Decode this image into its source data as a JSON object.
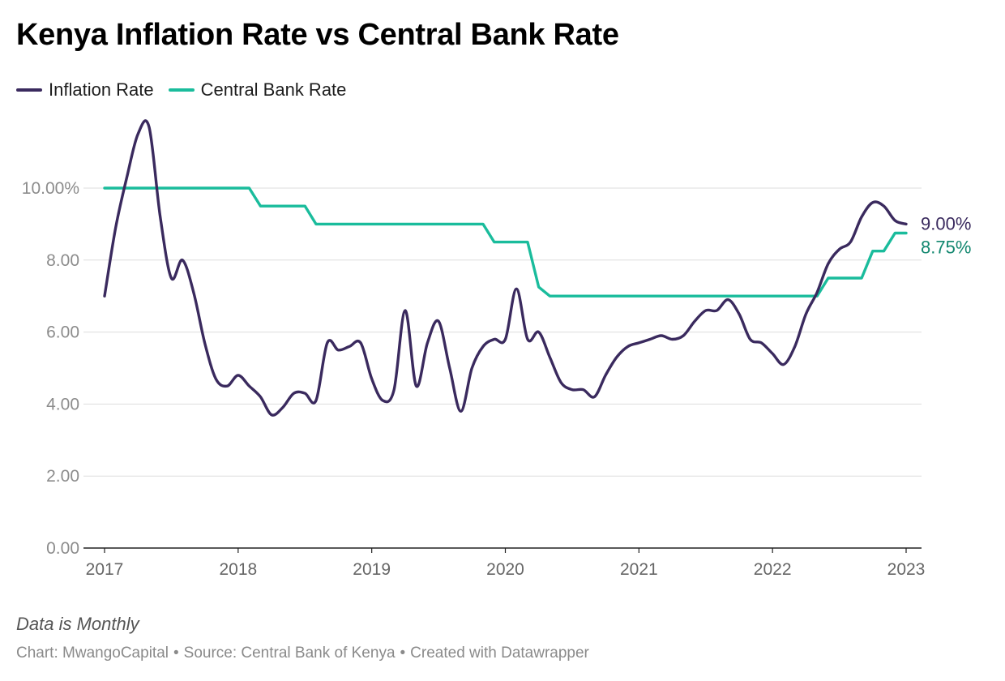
{
  "header": {
    "title": "Kenya Inflation Rate vs Central Bank Rate"
  },
  "note": "Data is Monthly",
  "footer": {
    "chart_credit": "Chart: MwangoCapital",
    "source": "Source: Central Bank of Kenya",
    "created_with": "Created with Datawrapper",
    "separator": "•"
  },
  "colors": {
    "inflation": "#3a2a5e",
    "cbr": "#1abc9c",
    "cbr_label": "#12876f",
    "grid": "#dddddd",
    "tick_text": "#8c8c8c"
  },
  "chart_data": {
    "type": "line",
    "title": "Kenya Inflation Rate vs Central Bank Rate",
    "xlabel": "",
    "ylabel": "",
    "xlim": [
      2017,
      2023
    ],
    "ylim": [
      0,
      12
    ],
    "x_ticks": [
      "2017",
      "2018",
      "2019",
      "2020",
      "2021",
      "2022",
      "2023"
    ],
    "y_ticks": [
      "0.00",
      "2.00",
      "4.00",
      "6.00",
      "8.00",
      "10.00%"
    ],
    "y_tick_values": [
      0,
      2,
      4,
      6,
      8,
      10
    ],
    "grid": true,
    "legend": "top-left",
    "series": [
      {
        "name": "Inflation Rate",
        "end_label": "9.00%",
        "points": [
          [
            2017.0,
            7.0
          ],
          [
            2017.083,
            8.9
          ],
          [
            2017.167,
            10.3
          ],
          [
            2017.25,
            11.5
          ],
          [
            2017.333,
            11.7
          ],
          [
            2017.417,
            9.2
          ],
          [
            2017.5,
            7.5
          ],
          [
            2017.583,
            8.0
          ],
          [
            2017.667,
            7.1
          ],
          [
            2017.75,
            5.7
          ],
          [
            2017.833,
            4.7
          ],
          [
            2017.917,
            4.5
          ],
          [
            2018.0,
            4.8
          ],
          [
            2018.083,
            4.5
          ],
          [
            2018.167,
            4.2
          ],
          [
            2018.25,
            3.7
          ],
          [
            2018.333,
            3.9
          ],
          [
            2018.417,
            4.3
          ],
          [
            2018.5,
            4.3
          ],
          [
            2018.583,
            4.1
          ],
          [
            2018.667,
            5.7
          ],
          [
            2018.75,
            5.5
          ],
          [
            2018.833,
            5.6
          ],
          [
            2018.917,
            5.7
          ],
          [
            2019.0,
            4.7
          ],
          [
            2019.083,
            4.1
          ],
          [
            2019.167,
            4.4
          ],
          [
            2019.25,
            6.6
          ],
          [
            2019.333,
            4.5
          ],
          [
            2019.417,
            5.7
          ],
          [
            2019.5,
            6.3
          ],
          [
            2019.583,
            5.0
          ],
          [
            2019.667,
            3.8
          ],
          [
            2019.75,
            5.0
          ],
          [
            2019.833,
            5.6
          ],
          [
            2019.917,
            5.8
          ],
          [
            2020.0,
            5.8
          ],
          [
            2020.083,
            7.2
          ],
          [
            2020.167,
            5.8
          ],
          [
            2020.25,
            6.0
          ],
          [
            2020.333,
            5.3
          ],
          [
            2020.417,
            4.6
          ],
          [
            2020.5,
            4.4
          ],
          [
            2020.583,
            4.4
          ],
          [
            2020.667,
            4.2
          ],
          [
            2020.75,
            4.8
          ],
          [
            2020.833,
            5.3
          ],
          [
            2020.917,
            5.6
          ],
          [
            2021.0,
            5.7
          ],
          [
            2021.083,
            5.8
          ],
          [
            2021.167,
            5.9
          ],
          [
            2021.25,
            5.8
          ],
          [
            2021.333,
            5.9
          ],
          [
            2021.417,
            6.3
          ],
          [
            2021.5,
            6.6
          ],
          [
            2021.583,
            6.6
          ],
          [
            2021.667,
            6.9
          ],
          [
            2021.75,
            6.5
          ],
          [
            2021.833,
            5.8
          ],
          [
            2021.917,
            5.7
          ],
          [
            2022.0,
            5.4
          ],
          [
            2022.083,
            5.1
          ],
          [
            2022.167,
            5.6
          ],
          [
            2022.25,
            6.5
          ],
          [
            2022.333,
            7.1
          ],
          [
            2022.417,
            7.9
          ],
          [
            2022.5,
            8.3
          ],
          [
            2022.583,
            8.5
          ],
          [
            2022.667,
            9.2
          ],
          [
            2022.75,
            9.6
          ],
          [
            2022.833,
            9.5
          ],
          [
            2022.917,
            9.1
          ],
          [
            2023.0,
            9.0
          ]
        ]
      },
      {
        "name": "Central Bank Rate",
        "end_label": "8.75%",
        "steps": [
          [
            2017.0,
            10.0
          ],
          [
            2018.083,
            10.0
          ],
          [
            2018.167,
            9.5
          ],
          [
            2018.5,
            9.5
          ],
          [
            2018.583,
            9.0
          ],
          [
            2019.833,
            9.0
          ],
          [
            2019.917,
            8.5
          ],
          [
            2020.167,
            8.5
          ],
          [
            2020.25,
            7.25
          ],
          [
            2020.333,
            7.0
          ],
          [
            2022.333,
            7.0
          ],
          [
            2022.417,
            7.5
          ],
          [
            2022.667,
            7.5
          ],
          [
            2022.75,
            8.25
          ],
          [
            2022.833,
            8.25
          ],
          [
            2022.917,
            8.75
          ],
          [
            2023.0,
            8.75
          ]
        ]
      }
    ]
  }
}
